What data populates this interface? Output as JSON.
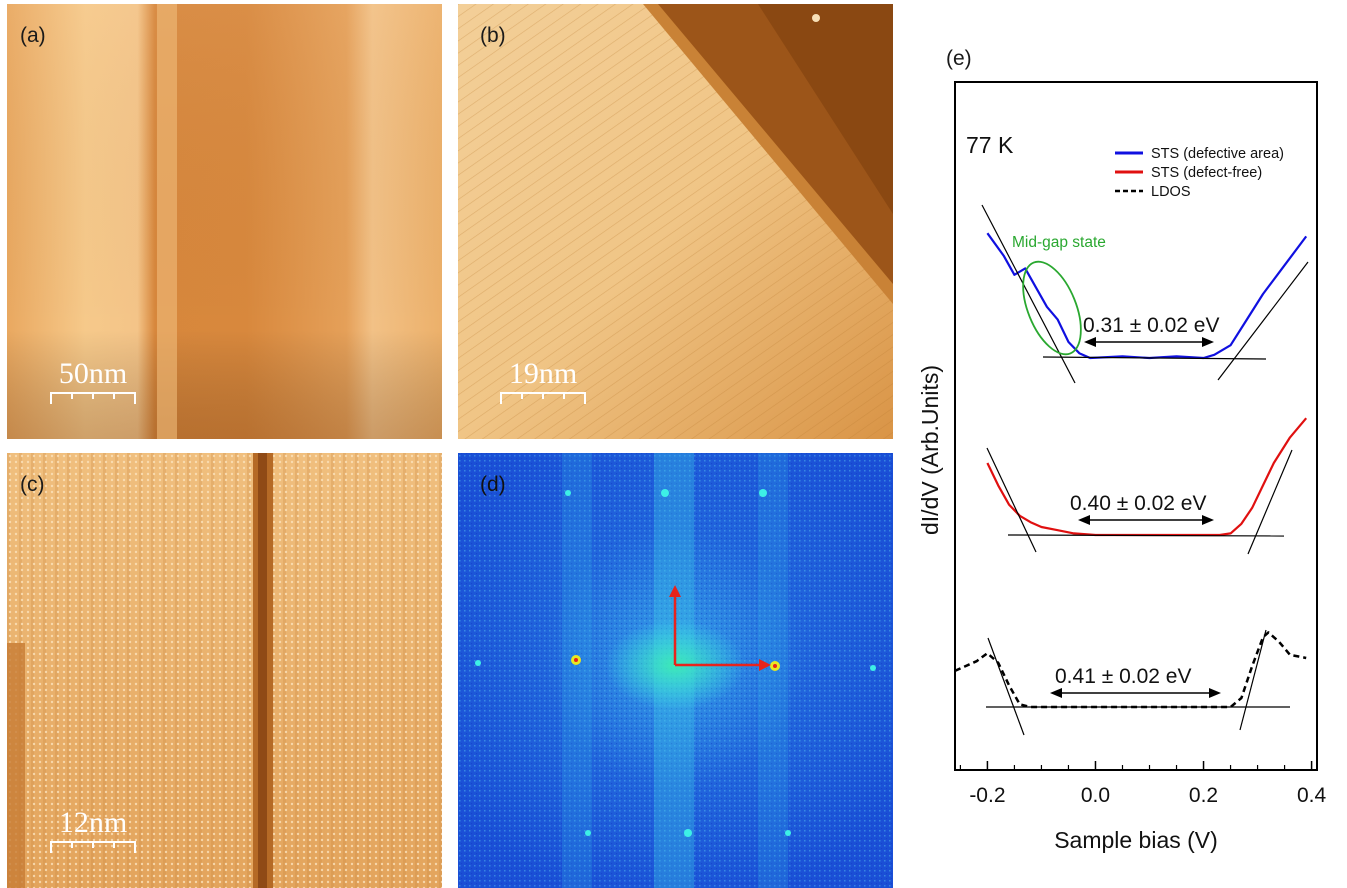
{
  "panels": {
    "a": {
      "label": "(a)",
      "scale_bar": "50nm"
    },
    "b": {
      "label": "(b)",
      "scale_bar": "19nm"
    },
    "c": {
      "label": "(c)",
      "scale_bar": "12nm"
    },
    "d": {
      "label": "(d)"
    }
  },
  "colors": {
    "stm_light": "#f6c98a",
    "stm_mid": "#dd9145",
    "stm_dark": "#8a4a16",
    "fft_bg": "#1a4fd6",
    "fft_spot": "#3df0e6",
    "arrow": "#e8231c"
  },
  "chart_data": {
    "type": "line",
    "panel_label": "(e)",
    "temperature_label": "77 K",
    "xlabel": "Sample bias (V)",
    "ylabel": "dI/dV (Arb.Units)",
    "xlim": [
      -0.26,
      0.41
    ],
    "xticks": [
      "-0.2",
      "0.0",
      "0.2",
      "0.4"
    ],
    "legend": [
      {
        "name": "STS (defective area)",
        "color": "#1010e0",
        "style": "solid"
      },
      {
        "name": "STS (defect-free)",
        "color": "#e01010",
        "style": "solid"
      },
      {
        "name": "LDOS",
        "color": "#000000",
        "style": "dashed"
      }
    ],
    "annotations": {
      "midgap": "Mid-gap state",
      "gap_defective": "0.31 ± 0.02 eV",
      "gap_defect_free": "0.40 ± 0.02 eV",
      "gap_ldos": "0.41 ± 0.02 eV"
    },
    "series": [
      {
        "name": "STS (defective area)",
        "x": [
          -0.2,
          -0.17,
          -0.15,
          -0.13,
          -0.11,
          -0.09,
          -0.07,
          -0.05,
          -0.03,
          -0.01,
          0.05,
          0.1,
          0.15,
          0.2,
          0.22,
          0.25,
          0.28,
          0.31,
          0.35,
          0.39
        ],
        "y": [
          8.3,
          7.6,
          7.0,
          7.2,
          6.6,
          6.0,
          5.6,
          4.9,
          4.55,
          4.4,
          4.45,
          4.4,
          4.45,
          4.4,
          4.5,
          4.8,
          5.6,
          6.4,
          7.3,
          8.2
        ]
      },
      {
        "name": "STS (defect-free)",
        "x": [
          -0.2,
          -0.18,
          -0.16,
          -0.14,
          -0.12,
          -0.1,
          -0.07,
          -0.04,
          0.0,
          0.05,
          0.1,
          0.15,
          0.2,
          0.23,
          0.25,
          0.27,
          0.29,
          0.31,
          0.33,
          0.36,
          0.39
        ],
        "y": [
          5.0,
          4.3,
          3.7,
          3.35,
          3.15,
          3.0,
          2.9,
          2.8,
          2.75,
          2.75,
          2.75,
          2.75,
          2.75,
          2.75,
          2.8,
          3.1,
          3.6,
          4.3,
          5.0,
          5.8,
          6.4
        ]
      },
      {
        "name": "LDOS",
        "x": [
          -0.26,
          -0.22,
          -0.2,
          -0.18,
          -0.16,
          -0.14,
          -0.12,
          0.0,
          0.1,
          0.2,
          0.25,
          0.27,
          0.29,
          0.31,
          0.32,
          0.34,
          0.36,
          0.39
        ],
        "y": [
          1.45,
          1.75,
          2.0,
          1.7,
          1.0,
          0.4,
          0.32,
          0.32,
          0.32,
          0.32,
          0.32,
          0.6,
          1.6,
          2.5,
          2.65,
          2.35,
          1.95,
          1.85
        ]
      }
    ]
  }
}
